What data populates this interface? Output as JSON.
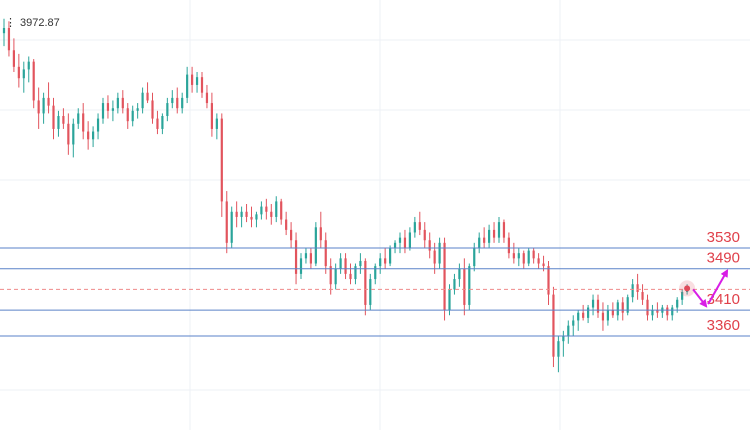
{
  "chart_data": {
    "type": "candlestick",
    "high_label": "3972.87",
    "colors": {
      "up": "#2aa49a",
      "down": "#e2545d",
      "level_line": "#5a82c8",
      "current_price_line": "#ef8a8a",
      "level_text": "#e0404a",
      "projection_arrow": "#d81ee6",
      "current_marker": "#e04a5a",
      "grid": "#eef1f5"
    },
    "levels": [
      {
        "value": 3530,
        "label": "3530"
      },
      {
        "value": 3490,
        "label": "3490"
      },
      {
        "value": 3410,
        "label": "3410"
      },
      {
        "value": 3360,
        "label": "3360"
      }
    ],
    "current_price": 3450,
    "projection": [
      3450,
      3410,
      3490
    ],
    "candles": [
      [
        3945,
        3972.87,
        3920,
        3955
      ],
      [
        3955,
        3968,
        3900,
        3912
      ],
      [
        3912,
        3935,
        3870,
        3880
      ],
      [
        3880,
        3905,
        3840,
        3858
      ],
      [
        3858,
        3890,
        3830,
        3875
      ],
      [
        3875,
        3900,
        3850,
        3890
      ],
      [
        3890,
        3895,
        3800,
        3815
      ],
      [
        3815,
        3840,
        3760,
        3790
      ],
      [
        3790,
        3830,
        3770,
        3820
      ],
      [
        3820,
        3850,
        3790,
        3805
      ],
      [
        3805,
        3820,
        3740,
        3760
      ],
      [
        3760,
        3795,
        3745,
        3785
      ],
      [
        3785,
        3800,
        3760,
        3770
      ],
      [
        3770,
        3790,
        3710,
        3730
      ],
      [
        3730,
        3780,
        3705,
        3770
      ],
      [
        3770,
        3800,
        3760,
        3790
      ],
      [
        3790,
        3810,
        3740,
        3755
      ],
      [
        3755,
        3775,
        3720,
        3740
      ],
      [
        3740,
        3765,
        3725,
        3755
      ],
      [
        3755,
        3790,
        3740,
        3780
      ],
      [
        3780,
        3820,
        3770,
        3810
      ],
      [
        3810,
        3825,
        3780,
        3795
      ],
      [
        3795,
        3815,
        3775,
        3800
      ],
      [
        3800,
        3830,
        3790,
        3820
      ],
      [
        3820,
        3835,
        3790,
        3800
      ],
      [
        3800,
        3810,
        3760,
        3775
      ],
      [
        3775,
        3805,
        3765,
        3795
      ],
      [
        3795,
        3810,
        3780,
        3800
      ],
      [
        3800,
        3840,
        3790,
        3830
      ],
      [
        3830,
        3850,
        3810,
        3815
      ],
      [
        3815,
        3830,
        3770,
        3780
      ],
      [
        3780,
        3795,
        3750,
        3760
      ],
      [
        3760,
        3790,
        3750,
        3785
      ],
      [
        3785,
        3820,
        3775,
        3810
      ],
      [
        3810,
        3835,
        3800,
        3820
      ],
      [
        3820,
        3840,
        3790,
        3800
      ],
      [
        3800,
        3830,
        3790,
        3820
      ],
      [
        3820,
        3880,
        3810,
        3865
      ],
      [
        3865,
        3880,
        3830,
        3845
      ],
      [
        3845,
        3870,
        3830,
        3860
      ],
      [
        3860,
        3870,
        3820,
        3830
      ],
      [
        3830,
        3845,
        3800,
        3810
      ],
      [
        3810,
        3830,
        3745,
        3760
      ],
      [
        3760,
        3790,
        3740,
        3780
      ],
      [
        3780,
        3790,
        3590,
        3620
      ],
      [
        3620,
        3640,
        3520,
        3540
      ],
      [
        3540,
        3610,
        3530,
        3600
      ],
      [
        3600,
        3620,
        3570,
        3590
      ],
      [
        3590,
        3610,
        3570,
        3600
      ],
      [
        3600,
        3615,
        3580,
        3590
      ],
      [
        3590,
        3610,
        3570,
        3585
      ],
      [
        3585,
        3600,
        3570,
        3595
      ],
      [
        3595,
        3620,
        3585,
        3610
      ],
      [
        3610,
        3625,
        3585,
        3600
      ],
      [
        3600,
        3615,
        3575,
        3590
      ],
      [
        3590,
        3630,
        3580,
        3620
      ],
      [
        3620,
        3625,
        3575,
        3585
      ],
      [
        3585,
        3600,
        3555,
        3565
      ],
      [
        3565,
        3580,
        3530,
        3545
      ],
      [
        3545,
        3560,
        3460,
        3480
      ],
      [
        3480,
        3520,
        3470,
        3510
      ],
      [
        3510,
        3530,
        3500,
        3520
      ],
      [
        3520,
        3530,
        3490,
        3500
      ],
      [
        3500,
        3580,
        3495,
        3570
      ],
      [
        3570,
        3600,
        3530,
        3545
      ],
      [
        3545,
        3560,
        3480,
        3495
      ],
      [
        3495,
        3510,
        3440,
        3460
      ],
      [
        3460,
        3500,
        3450,
        3490
      ],
      [
        3490,
        3520,
        3480,
        3510
      ],
      [
        3510,
        3520,
        3470,
        3480
      ],
      [
        3480,
        3500,
        3460,
        3470
      ],
      [
        3470,
        3500,
        3460,
        3495
      ],
      [
        3495,
        3520,
        3480,
        3505
      ],
      [
        3505,
        3510,
        3400,
        3420
      ],
      [
        3420,
        3480,
        3410,
        3470
      ],
      [
        3470,
        3500,
        3460,
        3495
      ],
      [
        3495,
        3520,
        3480,
        3510
      ],
      [
        3510,
        3530,
        3490,
        3500
      ],
      [
        3500,
        3535,
        3495,
        3530
      ],
      [
        3530,
        3545,
        3520,
        3540
      ],
      [
        3540,
        3560,
        3520,
        3550
      ],
      [
        3550,
        3565,
        3520,
        3530
      ],
      [
        3530,
        3570,
        3525,
        3560
      ],
      [
        3560,
        3590,
        3550,
        3580
      ],
      [
        3580,
        3600,
        3555,
        3565
      ],
      [
        3565,
        3580,
        3530,
        3545
      ],
      [
        3545,
        3560,
        3510,
        3525
      ],
      [
        3525,
        3540,
        3480,
        3500
      ],
      [
        3500,
        3550,
        3490,
        3540
      ],
      [
        3540,
        3550,
        3390,
        3410
      ],
      [
        3410,
        3460,
        3400,
        3450
      ],
      [
        3450,
        3480,
        3440,
        3470
      ],
      [
        3470,
        3500,
        3455,
        3490
      ],
      [
        3490,
        3510,
        3400,
        3420
      ],
      [
        3420,
        3500,
        3410,
        3495
      ],
      [
        3495,
        3540,
        3485,
        3530
      ],
      [
        3530,
        3560,
        3520,
        3550
      ],
      [
        3550,
        3570,
        3530,
        3540
      ],
      [
        3540,
        3575,
        3530,
        3565
      ],
      [
        3565,
        3580,
        3540,
        3550
      ],
      [
        3550,
        3590,
        3540,
        3580
      ],
      [
        3580,
        3585,
        3540,
        3550
      ],
      [
        3550,
        3560,
        3510,
        3520
      ],
      [
        3520,
        3540,
        3500,
        3510
      ],
      [
        3510,
        3530,
        3495,
        3520
      ],
      [
        3520,
        3525,
        3490,
        3500
      ],
      [
        3500,
        3530,
        3495,
        3525
      ],
      [
        3525,
        3530,
        3500,
        3510
      ],
      [
        3510,
        3520,
        3490,
        3500
      ],
      [
        3500,
        3515,
        3485,
        3495
      ],
      [
        3495,
        3505,
        3420,
        3440
      ],
      [
        3440,
        3455,
        3300,
        3320
      ],
      [
        3320,
        3360,
        3290,
        3350
      ],
      [
        3350,
        3370,
        3320,
        3360
      ],
      [
        3360,
        3390,
        3345,
        3380
      ],
      [
        3380,
        3400,
        3360,
        3390
      ],
      [
        3390,
        3410,
        3370,
        3405
      ],
      [
        3405,
        3420,
        3390,
        3395
      ],
      [
        3395,
        3420,
        3385,
        3415
      ],
      [
        3415,
        3440,
        3400,
        3430
      ],
      [
        3430,
        3440,
        3395,
        3405
      ],
      [
        3405,
        3425,
        3370,
        3390
      ],
      [
        3390,
        3420,
        3380,
        3410
      ],
      [
        3410,
        3425,
        3395,
        3400
      ],
      [
        3400,
        3430,
        3390,
        3425
      ],
      [
        3425,
        3435,
        3390,
        3405
      ],
      [
        3405,
        3440,
        3400,
        3435
      ],
      [
        3435,
        3470,
        3425,
        3460
      ],
      [
        3460,
        3480,
        3430,
        3445
      ],
      [
        3445,
        3460,
        3420,
        3430
      ],
      [
        3430,
        3440,
        3390,
        3400
      ],
      [
        3400,
        3420,
        3390,
        3410
      ],
      [
        3410,
        3425,
        3395,
        3405
      ],
      [
        3405,
        3420,
        3395,
        3415
      ],
      [
        3415,
        3420,
        3390,
        3400
      ],
      [
        3400,
        3420,
        3390,
        3415
      ],
      [
        3415,
        3435,
        3405,
        3430
      ],
      [
        3430,
        3450,
        3420,
        3445
      ],
      [
        3445,
        3460,
        3440,
        3450
      ]
    ]
  }
}
